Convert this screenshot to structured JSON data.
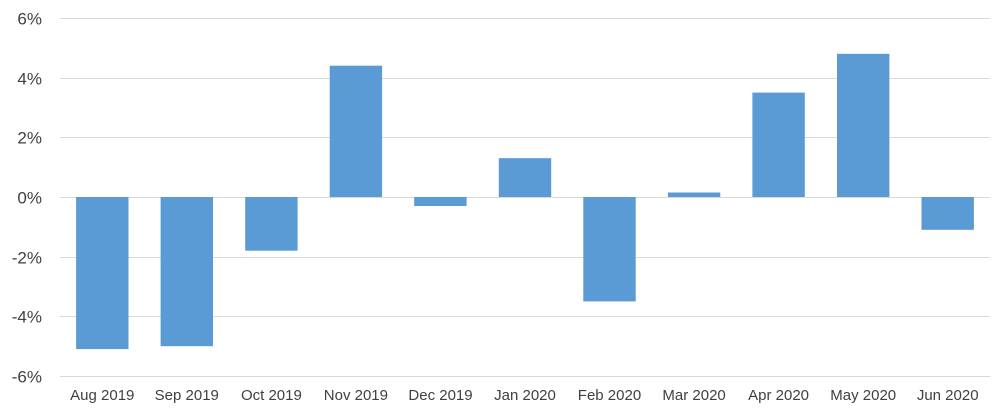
{
  "chart_data": {
    "type": "bar",
    "title": "",
    "xlabel": "",
    "ylabel": "",
    "categories": [
      "Aug 2019",
      "Sep 2019",
      "Oct 2019",
      "Nov 2019",
      "Dec 2019",
      "Jan 2020",
      "Feb 2020",
      "Mar 2020",
      "Apr 2020",
      "May 2020",
      "Jun 2020"
    ],
    "series": [
      {
        "values": [
          -5.1,
          -5.0,
          -1.8,
          4.4,
          -0.3,
          1.3,
          -3.5,
          0.15,
          3.5,
          4.8,
          -1.1
        ]
      }
    ],
    "ylim": [
      -6,
      6
    ],
    "yticks": [
      -6,
      -4,
      -2,
      0,
      2,
      4,
      6
    ],
    "ytick_labels": [
      "-6%",
      "-4%",
      "-2%",
      "0%",
      "2%",
      "4%",
      "6%"
    ],
    "grid": true,
    "legend": "none",
    "colors": {
      "bar": "#5b9bd5",
      "grid": "#d9d9d9",
      "text": "#404040"
    }
  }
}
